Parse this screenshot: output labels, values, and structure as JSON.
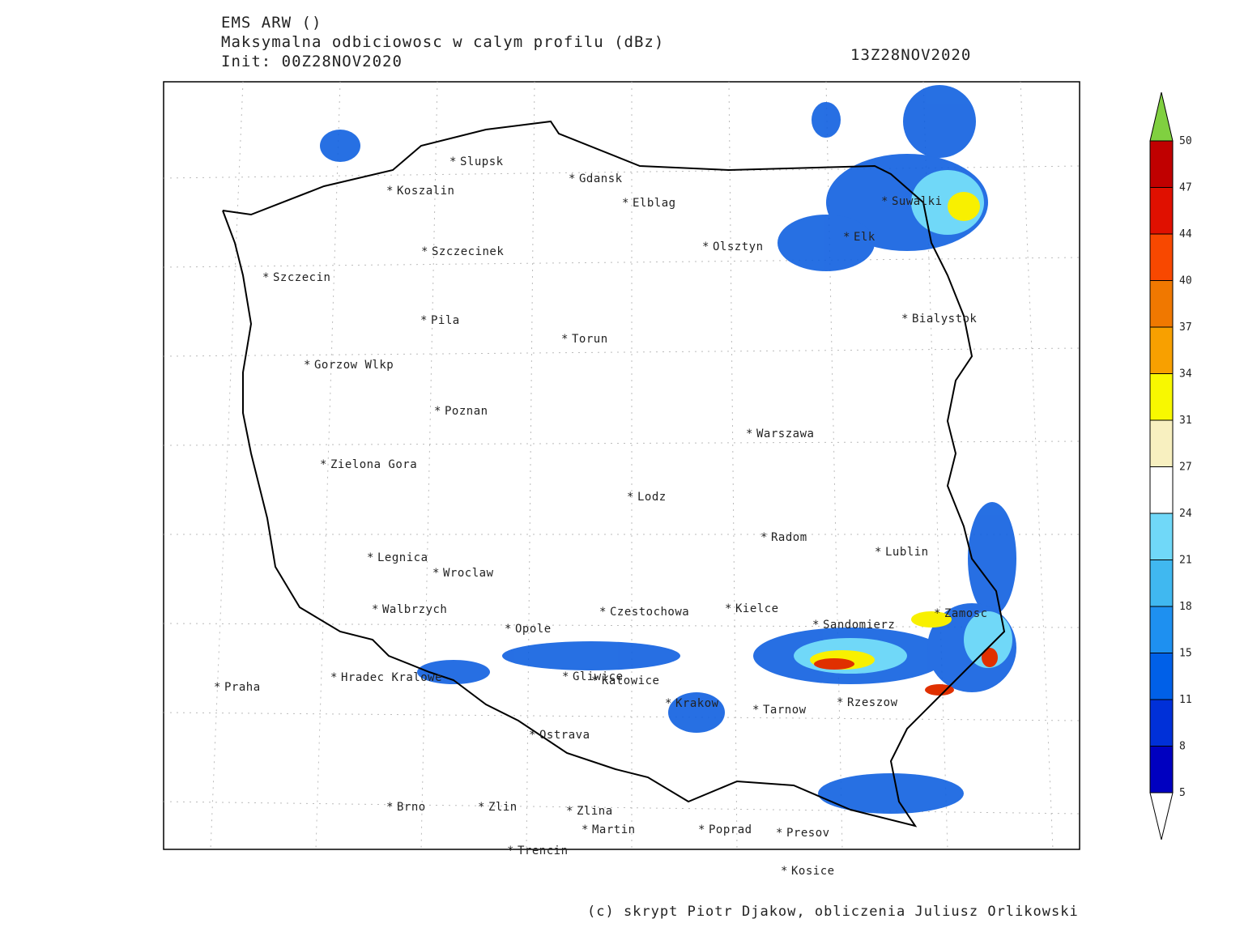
{
  "header": {
    "model": "EMS ARW ()",
    "field": "Maksymalna odbiciowosc w calym profilu (dBz)",
    "init": "Init: 00Z28NOV2020",
    "valid": "13Z28NOV2020"
  },
  "cities": [
    "Slupsk",
    "Koszalin",
    "Gdansk",
    "Elblag",
    "Szczecinek",
    "Olsztyn",
    "Suwalki",
    "Elk",
    "Szczecin",
    "Bialystok",
    "Pila",
    "Torun",
    "Gorzow Wlkp",
    "Poznan",
    "Warszawa",
    "Zielona Gora",
    "Lodz",
    "Radom",
    "Lublin",
    "Legnica",
    "Wroclaw",
    "Walbrzych",
    "Czestochowa",
    "Kielce",
    "Zamosc",
    "Sandomierz",
    "Opole",
    "Hradec Kralowe",
    "Gliwice",
    "Katowice",
    "Praha",
    "Krakow",
    "Rzeszow",
    "Tarnow",
    "Ostrava",
    "Brno",
    "Zlin",
    "Zlina",
    "Martin",
    "Poprad",
    "Presov",
    "Trencin",
    "Kosice"
  ],
  "legend": {
    "ticks": [
      5,
      8,
      11,
      15,
      18,
      21,
      24,
      27,
      31,
      34,
      37,
      40,
      44,
      47,
      50
    ],
    "colors": [
      "#0000c0",
      "#0030d8",
      "#0060e8",
      "#1e90f0",
      "#40b8f0",
      "#70d8f8",
      "#ffffff",
      "#f8f0c0",
      "#f8f800",
      "#f8a000",
      "#f07800",
      "#f84800",
      "#e01000",
      "#c00000"
    ],
    "below_color": "#ffffff",
    "above_color": "#80d040"
  },
  "footer": "(c) skrypt Piotr Djakow, obliczenia Juliusz Orlikowski"
}
